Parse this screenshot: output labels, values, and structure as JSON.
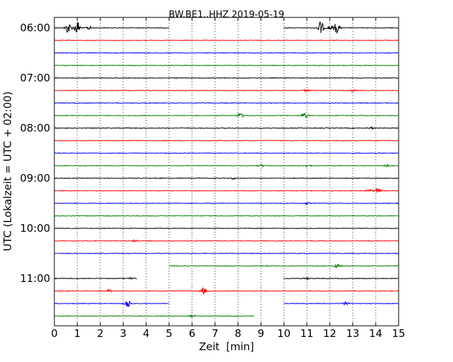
{
  "chart_data": {
    "type": "line",
    "title": "BW.BE1..HHZ 2019-05-19",
    "xlabel": "Zeit  [min]",
    "ylabel": "UTC (Lokalzeit = UTC + 02:00)",
    "xlim": [
      0,
      15
    ],
    "x_ticks": [
      "0",
      "1",
      "2",
      "3",
      "4",
      "5",
      "6",
      "7",
      "8",
      "9",
      "10",
      "11",
      "12",
      "13",
      "14",
      "15"
    ],
    "row_minutes": 15,
    "start_time": "06:00",
    "hour_labels": [
      "06:00",
      "07:00",
      "08:00",
      "09:00",
      "10:00",
      "11:00"
    ],
    "grid": "vertical dotted",
    "colors": [
      "#000000",
      "#ff0000",
      "#0000ff",
      "#008000"
    ],
    "traces": [
      {
        "row": 0,
        "color": "#000000",
        "segments": [
          [
            0,
            5
          ],
          [
            10,
            15
          ]
        ],
        "events": [
          [
            0.6,
            16
          ],
          [
            1.0,
            20
          ],
          [
            1.5,
            5
          ],
          [
            11.6,
            20
          ],
          [
            12.3,
            16
          ],
          [
            12.0,
            6
          ]
        ]
      },
      {
        "row": 1,
        "color": "#ff0000",
        "segments": [
          [
            0,
            15
          ]
        ],
        "events": []
      },
      {
        "row": 2,
        "color": "#0000ff",
        "segments": [
          [
            0,
            15
          ]
        ],
        "events": []
      },
      {
        "row": 3,
        "color": "#008000",
        "segments": [
          [
            0,
            15
          ]
        ],
        "events": []
      },
      {
        "row": 4,
        "color": "#000000",
        "segments": [
          [
            0,
            15
          ]
        ],
        "events": []
      },
      {
        "row": 5,
        "color": "#ff0000",
        "segments": [
          [
            0,
            15
          ]
        ],
        "events": [
          [
            11.0,
            3
          ],
          [
            13.0,
            3
          ]
        ]
      },
      {
        "row": 6,
        "color": "#0000ff",
        "segments": [
          [
            0,
            15
          ]
        ],
        "events": []
      },
      {
        "row": 7,
        "color": "#008000",
        "segments": [
          [
            0,
            15
          ]
        ],
        "events": [
          [
            8.1,
            7
          ],
          [
            10.9,
            9
          ]
        ]
      },
      {
        "row": 8,
        "color": "#000000",
        "segments": [
          [
            0,
            15
          ]
        ],
        "events": [
          [
            13.8,
            3
          ]
        ]
      },
      {
        "row": 9,
        "color": "#ff0000",
        "segments": [
          [
            0,
            15
          ]
        ],
        "events": []
      },
      {
        "row": 10,
        "color": "#0000ff",
        "segments": [
          [
            0,
            15
          ]
        ],
        "events": []
      },
      {
        "row": 11,
        "color": "#008000",
        "segments": [
          [
            0,
            15
          ]
        ],
        "events": [
          [
            9.0,
            3
          ],
          [
            11.0,
            3
          ],
          [
            14.5,
            3
          ]
        ]
      },
      {
        "row": 12,
        "color": "#000000",
        "segments": [
          [
            0,
            15
          ]
        ],
        "events": [
          [
            7.8,
            2
          ]
        ]
      },
      {
        "row": 13,
        "color": "#ff0000",
        "segments": [
          [
            0,
            15
          ]
        ],
        "events": [
          [
            13.7,
            4
          ],
          [
            14.1,
            7
          ]
        ]
      },
      {
        "row": 14,
        "color": "#0000ff",
        "segments": [
          [
            0,
            15
          ]
        ],
        "events": [
          [
            11.0,
            3
          ]
        ]
      },
      {
        "row": 15,
        "color": "#008000",
        "segments": [
          [
            0,
            15
          ]
        ],
        "events": []
      },
      {
        "row": 16,
        "color": "#000000",
        "segments": [
          [
            0,
            15
          ]
        ],
        "events": []
      },
      {
        "row": 17,
        "color": "#ff0000",
        "segments": [
          [
            0,
            15
          ]
        ],
        "events": [
          [
            3.5,
            3
          ]
        ]
      },
      {
        "row": 18,
        "color": "#0000ff",
        "segments": [
          [
            0,
            15
          ]
        ],
        "events": []
      },
      {
        "row": 19,
        "color": "#008000",
        "segments": [
          [
            5,
            15
          ]
        ],
        "events": [
          [
            12.3,
            6
          ]
        ]
      },
      {
        "row": 20,
        "color": "#000000",
        "segments": [
          [
            0,
            3.6
          ],
          [
            10,
            15
          ]
        ],
        "events": [
          [
            3.4,
            4
          ],
          [
            11.0,
            3
          ]
        ]
      },
      {
        "row": 21,
        "color": "#ff0000",
        "segments": [
          [
            0,
            15
          ]
        ],
        "events": [
          [
            2.4,
            4
          ],
          [
            6.5,
            9
          ]
        ]
      },
      {
        "row": 22,
        "color": "#0000ff",
        "segments": [
          [
            0,
            5
          ],
          [
            10,
            15
          ]
        ],
        "events": [
          [
            3.2,
            12
          ],
          [
            12.7,
            4
          ]
        ]
      },
      {
        "row": 23,
        "color": "#008000",
        "segments": [
          [
            0,
            8.7
          ]
        ],
        "events": [
          [
            6.0,
            3
          ]
        ]
      }
    ]
  }
}
